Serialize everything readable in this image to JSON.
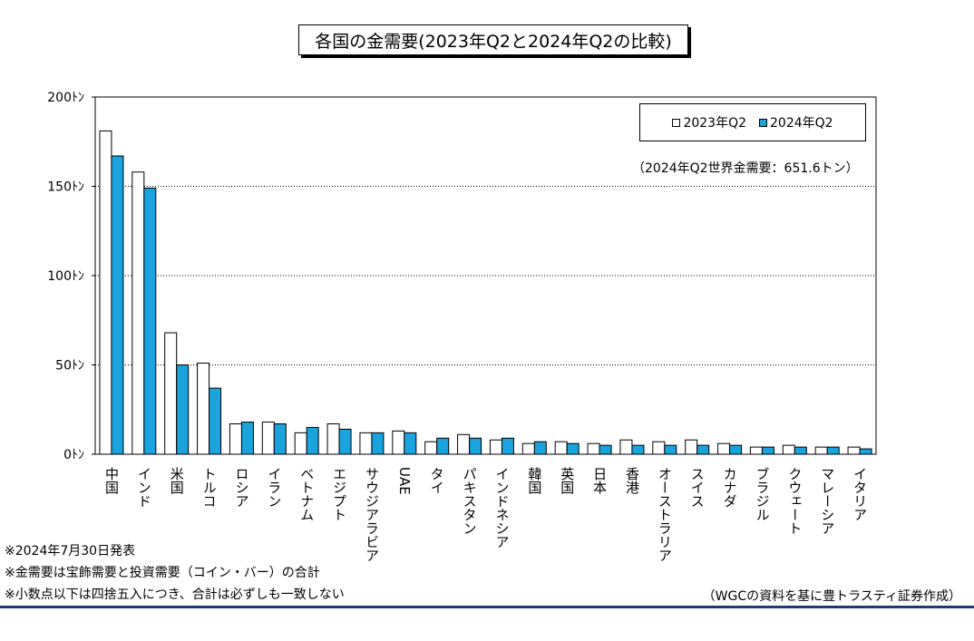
{
  "title": "各国の金需要(2023年Q2と2024年Q2の比較)",
  "annotation": "（2024年Q2世界金需要：651.6トン）",
  "notes": [
    "※2024年7月30日発表",
    "※金需要は宝飾需要と投資需要（コイン・バー）の合計",
    "※小数点以下は四捨五入につき、合計は必ずしも一致しない"
  ],
  "source": "（WGCの資料を基に豊トラスティ証券作成）",
  "colors": {
    "series_2023": "#ffffff",
    "series_2024": "#1aa3dc",
    "grid": "#000000",
    "rule": "#1f3a6e"
  },
  "chart_data": {
    "type": "bar",
    "title": "各国の金需要(2023年Q2と2024年Q2の比較)",
    "xlabel": "",
    "ylabel": "",
    "ylim": [
      0,
      200
    ],
    "yticks": [
      "0ﾄﾝ",
      "50ﾄﾝ",
      "100ﾄﾝ",
      "150ﾄﾝ",
      "200ﾄﾝ"
    ],
    "ytick_values": [
      0,
      50,
      100,
      150,
      200
    ],
    "grid": "horizontal dotted",
    "legend_position": "top-right",
    "categories": [
      "中国",
      "インド",
      "米国",
      "トルコ",
      "ロシア",
      "イラン",
      "ベトナム",
      "エジプト",
      "サウジアラビア",
      "UAE",
      "タイ",
      "パキスタン",
      "インドネシア",
      "韓国",
      "英国",
      "日本",
      "香港",
      "オーストラリア",
      "スイス",
      "カナダ",
      "ブラジル",
      "クウェート",
      "マレーシア",
      "イタリア"
    ],
    "series": [
      {
        "name": "2023年Q2",
        "values": [
          181,
          158,
          68,
          51,
          17,
          18,
          12,
          17,
          12,
          13,
          7,
          11,
          8,
          6,
          7,
          6,
          8,
          7,
          8,
          6,
          4,
          5,
          4,
          4
        ]
      },
      {
        "name": "2024年Q2",
        "values": [
          167,
          149,
          50,
          37,
          18,
          17,
          15,
          14,
          12,
          12,
          9,
          9,
          9,
          7,
          6,
          5,
          5,
          5,
          5,
          5,
          4,
          4,
          4,
          3
        ]
      }
    ]
  }
}
